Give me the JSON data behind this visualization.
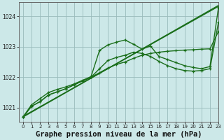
{
  "background_color": "#cce8e8",
  "grid_color": "#99bbbb",
  "line_color": "#1a6e1a",
  "title": "Graphe pression niveau de la mer (hPa)",
  "xlim": [
    -0.5,
    23
  ],
  "ylim": [
    1020.55,
    1024.45
  ],
  "yticks": [
    1021,
    1022,
    1023,
    1024
  ],
  "xticks": [
    0,
    1,
    2,
    3,
    4,
    5,
    6,
    7,
    8,
    9,
    10,
    11,
    12,
    13,
    14,
    15,
    16,
    17,
    18,
    19,
    20,
    21,
    22,
    23
  ],
  "straight_line": {
    "x": [
      0,
      23
    ],
    "y": [
      1020.7,
      1024.35
    ]
  },
  "straight_line2": {
    "x": [
      0,
      23
    ],
    "y": [
      1020.72,
      1024.32
    ]
  },
  "series_low": {
    "x": [
      0,
      1,
      2,
      3,
      4,
      5,
      6,
      7,
      8,
      9,
      10,
      11,
      12,
      13,
      14,
      15,
      16,
      17,
      18,
      19,
      20,
      21,
      22,
      23
    ],
    "y": [
      1020.7,
      1021.05,
      1021.2,
      1021.42,
      1021.52,
      1021.62,
      1021.75,
      1021.88,
      1022.0,
      1022.15,
      1022.3,
      1022.42,
      1022.5,
      1022.62,
      1022.72,
      1022.78,
      1022.82,
      1022.85,
      1022.87,
      1022.89,
      1022.9,
      1022.92,
      1022.93,
      1023.5
    ]
  },
  "series_mid": {
    "x": [
      0,
      1,
      2,
      3,
      4,
      5,
      6,
      7,
      8,
      9,
      10,
      11,
      12,
      13,
      14,
      15,
      16,
      17,
      18,
      19,
      20,
      21,
      22,
      23
    ],
    "y": [
      1020.7,
      1021.05,
      1021.2,
      1021.42,
      1021.52,
      1021.62,
      1021.75,
      1021.88,
      1022.0,
      1022.28,
      1022.55,
      1022.65,
      1022.72,
      1022.82,
      1022.78,
      1022.68,
      1022.52,
      1022.38,
      1022.28,
      1022.22,
      1022.2,
      1022.22,
      1022.28,
      1023.8
    ]
  },
  "series_high": {
    "x": [
      0,
      1,
      2,
      3,
      4,
      5,
      6,
      7,
      8,
      9,
      10,
      11,
      12,
      13,
      14,
      15,
      16,
      17,
      18,
      19,
      20,
      21,
      22,
      23
    ],
    "y": [
      1020.7,
      1021.1,
      1021.3,
      1021.5,
      1021.6,
      1021.68,
      1021.78,
      1021.9,
      1022.02,
      1022.88,
      1023.06,
      1023.15,
      1023.22,
      1023.08,
      1022.92,
      1023.02,
      1022.68,
      1022.58,
      1022.48,
      1022.38,
      1022.32,
      1022.28,
      1022.35,
      1024.28
    ]
  },
  "title_fontsize": 7.5,
  "tick_fontsize": 5.5
}
